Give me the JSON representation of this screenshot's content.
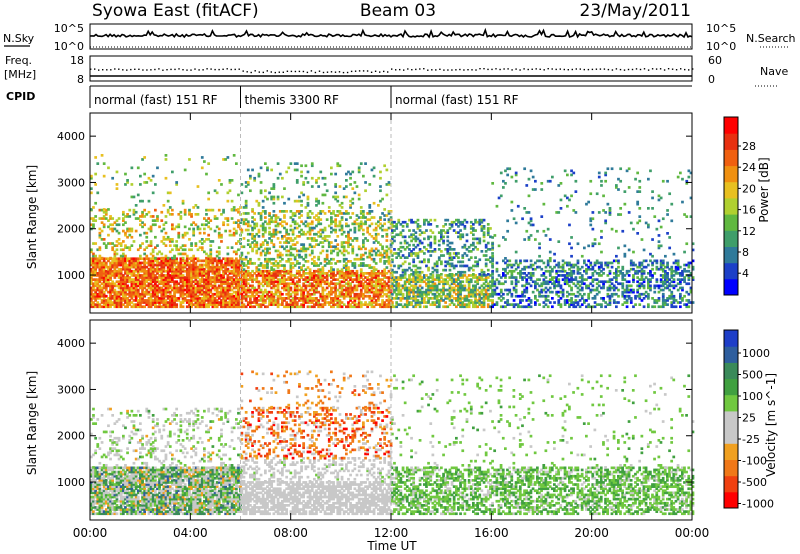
{
  "header": {
    "station": "Syowa East (fitACF)",
    "beam": "Beam 03",
    "date": "23/May/2011"
  },
  "side_labels": {
    "nsky": "N.Sky",
    "nsearch": "N.Search",
    "freq": "Freq.",
    "mhz": "[MHz]",
    "nave": "Nave",
    "cpid": "CPID"
  },
  "noise_panel": {
    "left_ticks": [
      "10^5",
      "10^0"
    ],
    "right_ticks": [
      "10^5",
      "10^0"
    ]
  },
  "freq_panel": {
    "left_ticks": [
      "18",
      "8"
    ],
    "right_ticks": [
      "60",
      "0"
    ]
  },
  "cpid_segments": [
    {
      "label": "normal (fast) 151 RF",
      "start_hour": 0,
      "end_hour": 6
    },
    {
      "label": "themis 3300 RF",
      "start_hour": 6,
      "end_hour": 12
    },
    {
      "label": "normal (fast) 151 RF",
      "start_hour": 12,
      "end_hour": 24
    }
  ],
  "colorbars": {
    "power": {
      "label": "Power [dB]",
      "ticks": [
        "28",
        "24",
        "20",
        "16",
        "12",
        "8",
        "4"
      ],
      "colors": [
        "#0000ff",
        "#1c40c8",
        "#2f7a9a",
        "#3f9e6a",
        "#60b840",
        "#b0d030",
        "#e8c020",
        "#f09010",
        "#f06010",
        "#e83010",
        "#ff0000"
      ]
    },
    "velocity": {
      "label": "Velocity [m s^-1]",
      "ticks": [
        "1000",
        "500",
        "100",
        "25",
        "-25",
        "-100",
        "-500",
        "-1000"
      ],
      "colors": [
        "#ff0000",
        "#f04010",
        "#f07818",
        "#f0a020",
        "#c8c8c8",
        "#c8c8c8",
        "#70c840",
        "#40a040",
        "#3a8a5a",
        "#2e5e9e",
        "#1e3ec8"
      ]
    }
  },
  "chart_data": [
    {
      "type": "heatmap",
      "panel": "power",
      "ylabel": "Slant Range [km]",
      "xlabel": "",
      "x_ticks": [
        "00:00",
        "04:00",
        "08:00",
        "12:00",
        "16:00",
        "20:00",
        "00:00"
      ],
      "y_ticks": [
        "1000",
        "2000",
        "3000",
        "4000"
      ],
      "xlim": [
        0,
        24
      ],
      "ylim": [
        180,
        4500
      ],
      "clim": [
        0,
        32
      ],
      "regions": [
        {
          "h0": 0.0,
          "h1": 6.0,
          "r0": 300,
          "r1": 1350,
          "vmin": 18,
          "vmax": 30,
          "density": 0.85
        },
        {
          "h0": 0.0,
          "h1": 6.0,
          "r0": 1350,
          "r1": 2400,
          "vmin": 10,
          "vmax": 24,
          "density": 0.22
        },
        {
          "h0": 0.0,
          "h1": 6.0,
          "r0": 2400,
          "r1": 3600,
          "vmin": 8,
          "vmax": 20,
          "density": 0.05
        },
        {
          "h0": 6.0,
          "h1": 12.0,
          "r0": 300,
          "r1": 1100,
          "vmin": 16,
          "vmax": 30,
          "density": 0.7
        },
        {
          "h0": 6.0,
          "h1": 12.0,
          "r0": 1100,
          "r1": 2400,
          "vmin": 8,
          "vmax": 22,
          "density": 0.35
        },
        {
          "h0": 6.0,
          "h1": 12.0,
          "r0": 2400,
          "r1": 3400,
          "vmin": 6,
          "vmax": 18,
          "density": 0.1
        },
        {
          "h0": 12.0,
          "h1": 16.0,
          "r0": 300,
          "r1": 1000,
          "vmin": 6,
          "vmax": 22,
          "density": 0.65
        },
        {
          "h0": 12.0,
          "h1": 16.0,
          "r0": 1000,
          "r1": 2200,
          "vmin": 4,
          "vmax": 16,
          "density": 0.28
        },
        {
          "h0": 16.0,
          "h1": 24.0,
          "r0": 300,
          "r1": 1300,
          "vmin": 2,
          "vmax": 14,
          "density": 0.42
        },
        {
          "h0": 16.0,
          "h1": 24.0,
          "r0": 1300,
          "r1": 3300,
          "vmin": 4,
          "vmax": 14,
          "density": 0.05
        }
      ]
    },
    {
      "type": "heatmap",
      "panel": "velocity",
      "ylabel": "Slant Range [km]",
      "xlabel": "Time UT",
      "x_ticks": [
        "00:00",
        "04:00",
        "08:00",
        "12:00",
        "16:00",
        "20:00",
        "00:00"
      ],
      "y_ticks": [
        "1000",
        "2000",
        "3000",
        "4000"
      ],
      "xlim": [
        0,
        24
      ],
      "ylim": [
        180,
        4500
      ],
      "clim": [
        -1000,
        1000
      ],
      "regions": [
        {
          "h0": 0.0,
          "h1": 6.0,
          "r0": 300,
          "r1": 1300,
          "vmin": -400,
          "vmax": 700,
          "density": 0.85
        },
        {
          "h0": 0.0,
          "h1": 6.0,
          "r0": 1300,
          "r1": 2600,
          "vmin": -300,
          "vmax": 300,
          "density": 0.18
        },
        {
          "h0": 6.0,
          "h1": 12.0,
          "r0": 300,
          "r1": 1000,
          "vmin": -60,
          "vmax": 60,
          "density": 0.7
        },
        {
          "h0": 6.0,
          "h1": 12.0,
          "r0": 1000,
          "r1": 1500,
          "vmin": -100,
          "vmax": 100,
          "density": 0.3
        },
        {
          "h0": 6.0,
          "h1": 12.0,
          "r0": 1500,
          "r1": 2600,
          "vmin": -900,
          "vmax": -100,
          "density": 0.28
        },
        {
          "h0": 6.0,
          "h1": 12.0,
          "r0": 2600,
          "r1": 3400,
          "vmin": -700,
          "vmax": -80,
          "density": 0.1
        },
        {
          "h0": 12.0,
          "h1": 24.0,
          "r0": 300,
          "r1": 1300,
          "vmin": 30,
          "vmax": 400,
          "density": 0.55
        },
        {
          "h0": 12.0,
          "h1": 24.0,
          "r0": 1300,
          "r1": 3300,
          "vmin": 50,
          "vmax": 300,
          "density": 0.05
        }
      ]
    }
  ]
}
